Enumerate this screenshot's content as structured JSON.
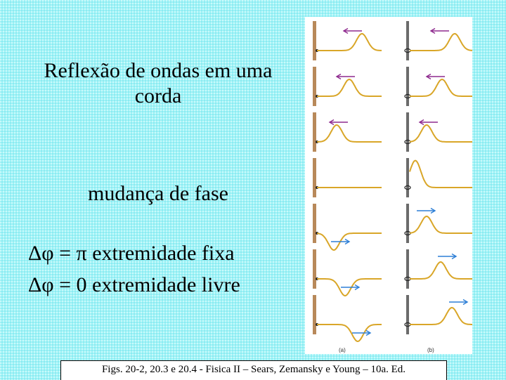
{
  "slide": {
    "title_line1": "Reflexão de ondas em uma",
    "title_line2": "corda",
    "subtitle": "mudança de fase",
    "formula_fixed": {
      "symbol": "Δφ",
      "equals": " = ",
      "value": "π",
      "label": " extremidade fixa"
    },
    "formula_free": {
      "symbol": "Δφ",
      "equals": " = ",
      "value": "0",
      "label": "  extremidade livre"
    }
  },
  "figure": {
    "panel_a_label": "(a)",
    "panel_b_label": "(b)",
    "colors": {
      "wave": "#d9a628",
      "incident_arrow": "#8e2a8e",
      "reflected_arrow": "#2d7fd6",
      "fixed_wall": "#b8895a",
      "free_rod": "#6b6b6b"
    }
  },
  "caption": "Figs. 20-2,  20.3 e 20.4 - Fisica II – Sears, Zemansky e Young – 10a. Ed."
}
